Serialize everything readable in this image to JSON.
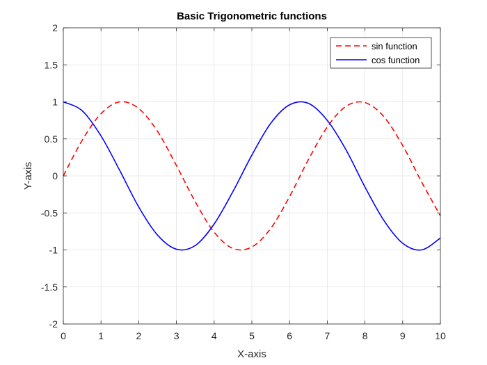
{
  "chart_data": {
    "type": "line",
    "title": "Basic Trigonometric functions",
    "xlabel": "X-axis",
    "ylabel": "Y-axis",
    "xlim": [
      0,
      10
    ],
    "ylim": [
      -2,
      2
    ],
    "xticks": [
      0,
      1,
      2,
      3,
      4,
      5,
      6,
      7,
      8,
      9,
      10
    ],
    "yticks": [
      -2,
      -1.5,
      -1,
      -0.5,
      0,
      0.5,
      1,
      1.5,
      2
    ],
    "xtick_labels": [
      "0",
      "1",
      "2",
      "3",
      "4",
      "5",
      "6",
      "7",
      "8",
      "9",
      "10"
    ],
    "ytick_labels": [
      "-2",
      "-1.5",
      "-1",
      "-0.5",
      "0",
      "0.5",
      "1",
      "1.5",
      "2"
    ],
    "grid": true,
    "legend_position": "top-right",
    "x": [
      0,
      0.5,
      1,
      1.5,
      2,
      2.5,
      3,
      3.5,
      4,
      4.5,
      5,
      5.5,
      6,
      6.5,
      7,
      7.5,
      8,
      8.5,
      9,
      9.5,
      10
    ],
    "series": [
      {
        "name": "sin function",
        "color": "#ff0000",
        "line_style": "dashed",
        "values": [
          0,
          0.48,
          0.84,
          1.0,
          0.91,
          0.6,
          0.14,
          -0.35,
          -0.76,
          -0.98,
          -0.96,
          -0.71,
          -0.28,
          0.22,
          0.66,
          0.94,
          0.99,
          0.8,
          0.41,
          -0.08,
          -0.54
        ]
      },
      {
        "name": "cos function",
        "color": "#0000ff",
        "line_style": "solid",
        "values": [
          1.0,
          0.88,
          0.54,
          0.07,
          -0.42,
          -0.8,
          -0.99,
          -0.94,
          -0.65,
          -0.21,
          0.28,
          0.71,
          0.96,
          0.98,
          0.75,
          0.35,
          -0.15,
          -0.6,
          -0.91,
          -1.0,
          -0.84
        ]
      }
    ]
  }
}
